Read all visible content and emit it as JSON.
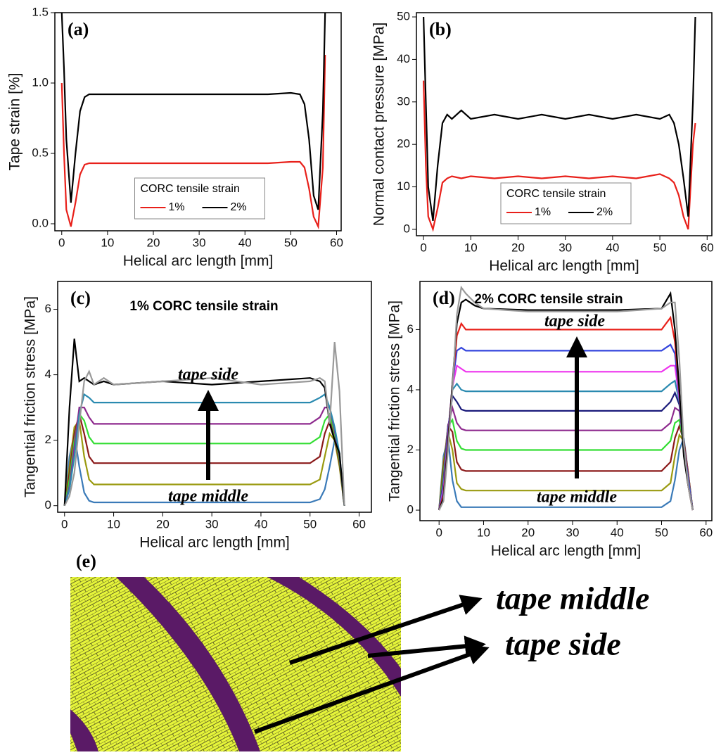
{
  "chart_data": [
    {
      "type": "line",
      "panel_label": "(a)",
      "xlabel": "Helical arc length [mm]",
      "ylabel": "Tape strain [%]",
      "xlim": [
        -1.5,
        61
      ],
      "ylim": [
        -0.05,
        1.5
      ],
      "xticks": [
        0,
        10,
        20,
        30,
        40,
        50,
        60
      ],
      "yticks": [
        {
          "value": 0,
          "label": "0.0"
        },
        {
          "value": 0.5,
          "label": "0.5"
        },
        {
          "value": 1,
          "label": "1.0"
        },
        {
          "value": 1.5,
          "label": "1.5"
        }
      ],
      "legend_title": "CORC tensile strain",
      "legend": "lower center",
      "x": [
        0,
        0.5,
        1,
        2,
        3,
        4,
        5,
        6,
        8,
        10,
        15,
        20,
        25,
        30,
        35,
        40,
        45,
        50,
        52,
        53,
        54,
        55,
        56,
        57,
        57.5
      ],
      "series": [
        {
          "name": "1%",
          "color": "#e8201a",
          "values": [
            1.0,
            0.5,
            0.1,
            -0.02,
            0.15,
            0.35,
            0.42,
            0.43,
            0.43,
            0.43,
            0.43,
            0.43,
            0.43,
            0.43,
            0.43,
            0.43,
            0.43,
            0.44,
            0.44,
            0.4,
            0.25,
            0.05,
            -0.02,
            0.4,
            1.2
          ]
        },
        {
          "name": "2%",
          "color": "#000000",
          "values": [
            1.5,
            1.1,
            0.6,
            0.15,
            0.5,
            0.8,
            0.9,
            0.92,
            0.92,
            0.92,
            0.92,
            0.92,
            0.92,
            0.92,
            0.92,
            0.92,
            0.92,
            0.93,
            0.92,
            0.85,
            0.6,
            0.2,
            0.1,
            0.8,
            1.5
          ]
        }
      ]
    },
    {
      "type": "line",
      "panel_label": "(b)",
      "xlabel": "Helical arc length [mm]",
      "ylabel": "Normal contact pressure [MPa]",
      "xlim": [
        -1.5,
        61
      ],
      "ylim": [
        -1.5,
        51
      ],
      "xticks": [
        0,
        10,
        20,
        30,
        40,
        50,
        60
      ],
      "yticks": [
        0,
        10,
        20,
        30,
        40,
        50
      ],
      "legend_title": "CORC tensile strain",
      "legend": "lower center",
      "x": [
        0,
        0.5,
        1,
        2,
        3,
        4,
        5,
        6,
        8,
        10,
        15,
        20,
        25,
        30,
        35,
        40,
        45,
        50,
        52,
        53,
        54,
        55,
        56,
        57,
        57.5
      ],
      "series": [
        {
          "name": "1%",
          "color": "#e8201a",
          "values": [
            35,
            15,
            3,
            0,
            5,
            11,
            12,
            12.5,
            12,
            12.5,
            12,
            12.5,
            12,
            12.5,
            12,
            12.5,
            12,
            13,
            12,
            11,
            8,
            3,
            0,
            20,
            25
          ]
        },
        {
          "name": "2%",
          "color": "#000000",
          "values": [
            50,
            30,
            10,
            2,
            15,
            25,
            27,
            26,
            28,
            26,
            27,
            26,
            27,
            26,
            27,
            26,
            27,
            26,
            27,
            25,
            20,
            12,
            3,
            30,
            50
          ]
        }
      ]
    },
    {
      "type": "line",
      "panel_label": "(c)",
      "xlabel": "Helical arc length [mm]",
      "ylabel": "Tangential friction stress [MPa]",
      "xlim": [
        -1.4,
        62.5
      ],
      "ylim": [
        -0.2,
        6.85
      ],
      "xticks": [
        0,
        10,
        20,
        30,
        40,
        50,
        60
      ],
      "yticks": [
        0,
        2,
        4,
        6
      ],
      "annotations": [
        "1% CORC tensile strain",
        "tape side",
        "tape middle"
      ],
      "x": [
        0,
        1,
        2,
        3,
        4,
        5,
        6,
        8,
        10,
        20,
        30,
        40,
        50,
        52,
        53,
        54,
        55,
        56,
        57
      ],
      "series": [
        {
          "color": "#3a7ab8",
          "values": [
            0,
            1.5,
            2.2,
            1.2,
            0.4,
            0.15,
            0.1,
            0.1,
            0.1,
            0.1,
            0.1,
            0.1,
            0.1,
            0.2,
            0.5,
            1.2,
            2.0,
            1.5,
            0
          ]
        },
        {
          "color": "#9a9a10",
          "values": [
            0,
            1.2,
            2.4,
            2.6,
            1.5,
            0.8,
            0.65,
            0.65,
            0.65,
            0.65,
            0.65,
            0.65,
            0.65,
            0.8,
            1.5,
            2.2,
            2.0,
            1.2,
            0
          ]
        },
        {
          "color": "#8b1a1a",
          "values": [
            0,
            1.0,
            2.2,
            2.8,
            2.2,
            1.5,
            1.3,
            1.3,
            1.3,
            1.3,
            1.3,
            1.3,
            1.3,
            1.5,
            2.2,
            2.6,
            2.1,
            1.3,
            0
          ]
        },
        {
          "color": "#33dd33",
          "values": [
            0,
            0.8,
            2.0,
            2.8,
            2.6,
            2.1,
            1.9,
            1.9,
            1.9,
            1.9,
            1.9,
            1.9,
            1.9,
            2.1,
            2.6,
            2.8,
            2.2,
            1.4,
            0
          ]
        },
        {
          "color": "#8e2a8e",
          "values": [
            0,
            0.6,
            1.8,
            3.0,
            3.0,
            2.7,
            2.5,
            2.5,
            2.5,
            2.5,
            2.5,
            2.5,
            2.5,
            2.7,
            3.0,
            3.0,
            2.3,
            1.5,
            0
          ]
        },
        {
          "color": "#2a8ab0",
          "values": [
            0,
            0.5,
            1.5,
            2.8,
            3.4,
            3.3,
            3.15,
            3.15,
            3.15,
            3.15,
            3.15,
            3.15,
            3.15,
            3.3,
            3.4,
            3.0,
            2.4,
            1.6,
            0
          ]
        },
        {
          "color": "#000000",
          "values": [
            0,
            3.0,
            5.1,
            3.8,
            3.9,
            3.8,
            3.7,
            3.8,
            3.7,
            3.8,
            3.7,
            3.8,
            3.9,
            3.8,
            3.6,
            2.5,
            2.0,
            1.6,
            0
          ]
        },
        {
          "color": "#999999",
          "values": [
            0,
            0.3,
            1.0,
            2.5,
            3.8,
            4.1,
            3.7,
            3.9,
            3.7,
            3.8,
            3.9,
            3.7,
            3.8,
            3.9,
            3.8,
            2.5,
            5.0,
            3.5,
            0
          ]
        }
      ]
    },
    {
      "type": "line",
      "panel_label": "(d)",
      "xlabel": "Helical arc length [mm]",
      "ylabel": "Tangential friction stress [MPa]",
      "xlim": [
        -4.3,
        61.3
      ],
      "ylim": [
        -0.35,
        7.6
      ],
      "xticks": [
        0,
        10,
        20,
        30,
        40,
        50,
        60
      ],
      "yticks": [
        0,
        2,
        4,
        6
      ],
      "annotations": [
        "2% CORC tensile strain",
        "tape side",
        "tape middle"
      ],
      "x": [
        0,
        1,
        2,
        3,
        4,
        5,
        6,
        8,
        10,
        20,
        30,
        40,
        50,
        52,
        53,
        54,
        55,
        56,
        57
      ],
      "series": [
        {
          "color": "#3a7ab8",
          "values": [
            0,
            1.8,
            2.4,
            1.0,
            0.3,
            0.1,
            0.1,
            0.1,
            0.1,
            0.1,
            0.1,
            0.1,
            0.1,
            0.3,
            1.0,
            2.0,
            2.4,
            1.2,
            0
          ]
        },
        {
          "color": "#9a9a10",
          "values": [
            0,
            1.6,
            2.6,
            2.0,
            0.9,
            0.7,
            0.65,
            0.65,
            0.65,
            0.65,
            0.65,
            0.65,
            0.65,
            0.9,
            1.8,
            2.5,
            2.3,
            1.2,
            0
          ]
        },
        {
          "color": "#8b1a1a",
          "values": [
            0,
            1.4,
            2.8,
            2.6,
            1.6,
            1.35,
            1.3,
            1.3,
            1.3,
            1.3,
            1.3,
            1.3,
            1.3,
            1.6,
            2.4,
            2.8,
            2.3,
            1.2,
            0
          ]
        },
        {
          "color": "#33dd33",
          "values": [
            0,
            1.2,
            2.8,
            3.0,
            2.3,
            2.05,
            2.0,
            2.0,
            2.0,
            2.0,
            2.0,
            2.0,
            2.0,
            2.3,
            2.9,
            3.0,
            2.2,
            1.1,
            0
          ]
        },
        {
          "color": "#8e2a8e",
          "values": [
            0,
            1.0,
            2.8,
            3.4,
            2.9,
            2.7,
            2.65,
            2.65,
            2.65,
            2.65,
            2.65,
            2.65,
            2.65,
            2.9,
            3.4,
            3.3,
            2.2,
            1.1,
            0
          ]
        },
        {
          "color": "#1a1a7a",
          "values": [
            0,
            0.9,
            2.7,
            3.8,
            3.6,
            3.35,
            3.3,
            3.3,
            3.3,
            3.3,
            3.3,
            3.3,
            3.3,
            3.6,
            3.9,
            3.5,
            2.1,
            1.0,
            0
          ]
        },
        {
          "color": "#2a8ab0",
          "values": [
            0,
            0.8,
            2.6,
            4.0,
            4.2,
            4.0,
            3.95,
            3.95,
            3.95,
            3.95,
            3.95,
            3.95,
            3.95,
            4.2,
            4.3,
            3.6,
            2.0,
            1.0,
            0
          ]
        },
        {
          "color": "#ee33ee",
          "values": [
            0,
            0.7,
            2.5,
            4.1,
            4.8,
            4.7,
            4.6,
            4.6,
            4.6,
            4.6,
            4.6,
            4.6,
            4.6,
            4.8,
            4.8,
            3.7,
            2.0,
            0.9,
            0
          ]
        },
        {
          "color": "#3344dd",
          "values": [
            0,
            0.6,
            2.4,
            4.2,
            5.3,
            5.4,
            5.3,
            5.3,
            5.3,
            5.3,
            5.3,
            5.3,
            5.3,
            5.5,
            5.2,
            3.8,
            1.9,
            0.9,
            0
          ]
        },
        {
          "color": "#e8201a",
          "values": [
            0,
            0.5,
            2.3,
            4.2,
            5.8,
            6.2,
            6.0,
            6.0,
            6.0,
            6.0,
            6.0,
            6.0,
            6.0,
            6.4,
            5.6,
            3.9,
            1.9,
            0.8,
            0
          ]
        },
        {
          "color": "#000000",
          "values": [
            0,
            0.4,
            2.2,
            4.2,
            6.2,
            6.9,
            7.0,
            6.8,
            6.7,
            6.65,
            6.65,
            6.65,
            6.7,
            7.2,
            6.0,
            4.0,
            1.8,
            0.8,
            0
          ]
        },
        {
          "color": "#999999",
          "values": [
            0,
            0.3,
            2.0,
            4.0,
            6.5,
            7.4,
            7.2,
            6.9,
            6.7,
            6.6,
            6.6,
            6.6,
            6.7,
            6.9,
            6.9,
            5.0,
            2.2,
            0.8,
            0
          ]
        }
      ]
    }
  ],
  "figure_e": {
    "label": "(e)",
    "callouts": [
      "tape middle",
      "tape side"
    ]
  }
}
